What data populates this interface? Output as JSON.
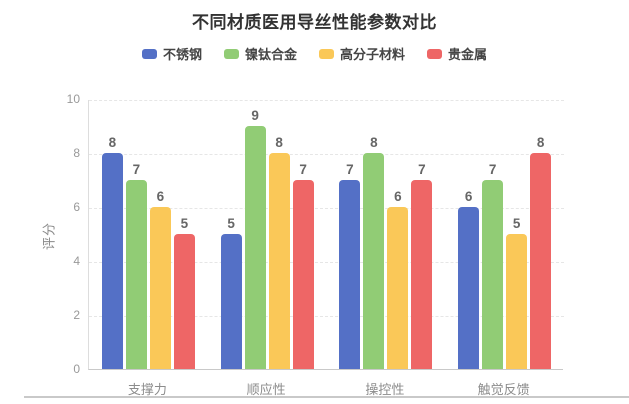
{
  "page": {
    "background": "#ffffff"
  },
  "chart_data": {
    "type": "bar",
    "title": "不同材质医用导丝性能参数对比",
    "ylabel": "评分",
    "xlabel": "",
    "categories": [
      "支撑力",
      "顺应性",
      "操控性",
      "触觉反馈"
    ],
    "series": [
      {
        "name": "不锈钢",
        "color": "#5470c6",
        "values": [
          8,
          5,
          7,
          6
        ]
      },
      {
        "name": "镍钛合金",
        "color": "#91cc75",
        "values": [
          7,
          9,
          8,
          7
        ]
      },
      {
        "name": "高分子材料",
        "color": "#fac858",
        "values": [
          6,
          8,
          6,
          5
        ]
      },
      {
        "name": "贵金属",
        "color": "#ee6666",
        "values": [
          5,
          7,
          7,
          8
        ]
      }
    ],
    "ylim": [
      0,
      10
    ],
    "yticks": [
      0,
      2,
      4,
      6,
      8,
      10
    ],
    "grid": "horizontal-dashed",
    "legend_position": "top",
    "bar_value_labels": true
  }
}
